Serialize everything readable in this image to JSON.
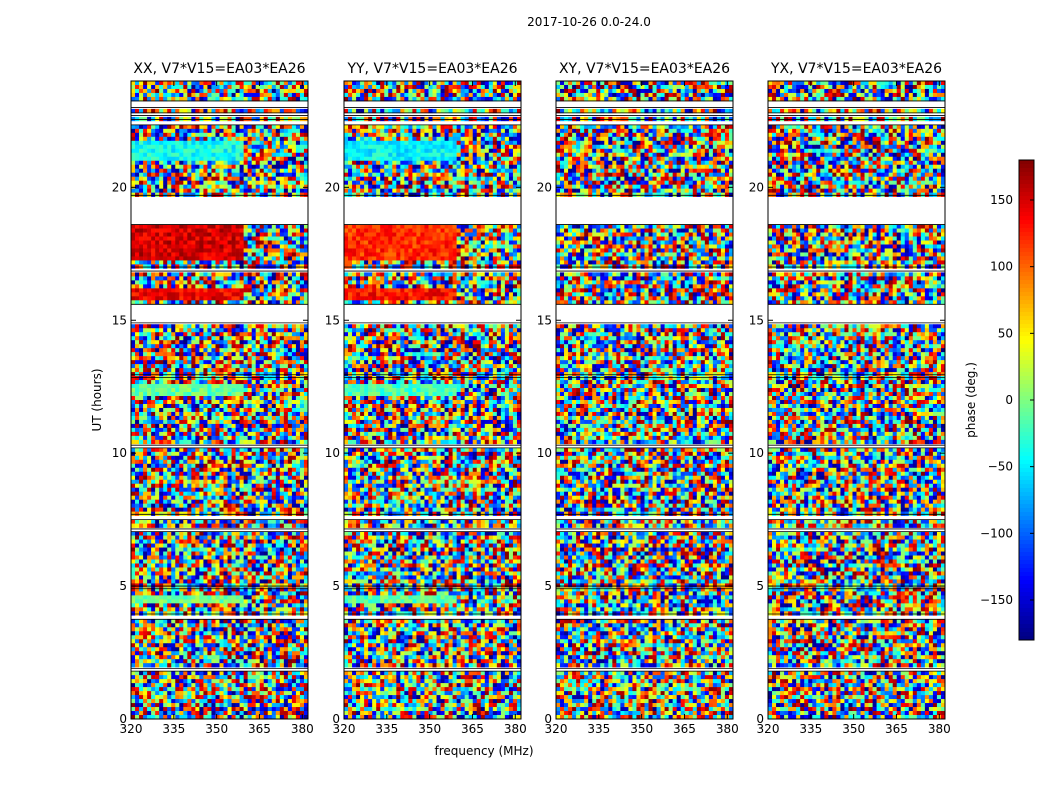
{
  "suptitle": "2017-10-26 0.0-24.0",
  "chart_data": {
    "type": "heatmap",
    "xlabel": "frequency (MHz)",
    "ylabel": "UT (hours)",
    "xlim": [
      320,
      382
    ],
    "ylim": [
      0,
      24
    ],
    "xticks": [
      320,
      335,
      350,
      365,
      380
    ],
    "yticks": [
      0,
      5,
      10,
      15,
      20
    ],
    "colorbar": {
      "label": "phase (deg.)",
      "colormap": "jet",
      "range": [
        -180,
        180
      ],
      "ticks": [
        -150,
        -100,
        -50,
        0,
        50,
        100,
        150
      ]
    },
    "panels": [
      {
        "title": "XX, V7*V15=EA03*EA26",
        "pol": "XX"
      },
      {
        "title": "YY, V7*V15=EA03*EA26",
        "pol": "YY"
      },
      {
        "title": "XY, V7*V15=EA03*EA26",
        "pol": "XY"
      },
      {
        "title": "YX, V7*V15=EA03*EA26",
        "pol": "YX"
      }
    ],
    "gaps_ut": [
      [
        23.0,
        23.25
      ],
      [
        22.7,
        22.8
      ],
      [
        22.35,
        22.55
      ],
      [
        19.7,
        18.6
      ],
      [
        17.0,
        16.85
      ],
      [
        15.6,
        14.9
      ],
      [
        12.95,
        12.85
      ],
      [
        10.3,
        10.2
      ],
      [
        7.7,
        7.5
      ],
      [
        7.15,
        7.05
      ],
      [
        5.0,
        4.9
      ],
      [
        3.95,
        3.75
      ],
      [
        1.9,
        1.8
      ]
    ],
    "coherent_bands": [
      {
        "ut": [
          21.0,
          21.8
        ],
        "xx_phase": -40,
        "yy_phase": -45
      },
      {
        "ut": [
          17.3,
          18.6
        ],
        "xx_phase": 150,
        "yy_phase": 120
      },
      {
        "ut": [
          15.75,
          16.25
        ],
        "xx_phase": 140,
        "yy_phase": 130
      },
      {
        "ut": [
          12.2,
          12.6
        ],
        "xx_phase": -10,
        "yy_phase": -20
      },
      {
        "ut": [
          4.4,
          4.7
        ],
        "xx_phase": -5,
        "yy_phase": -15
      }
    ]
  }
}
